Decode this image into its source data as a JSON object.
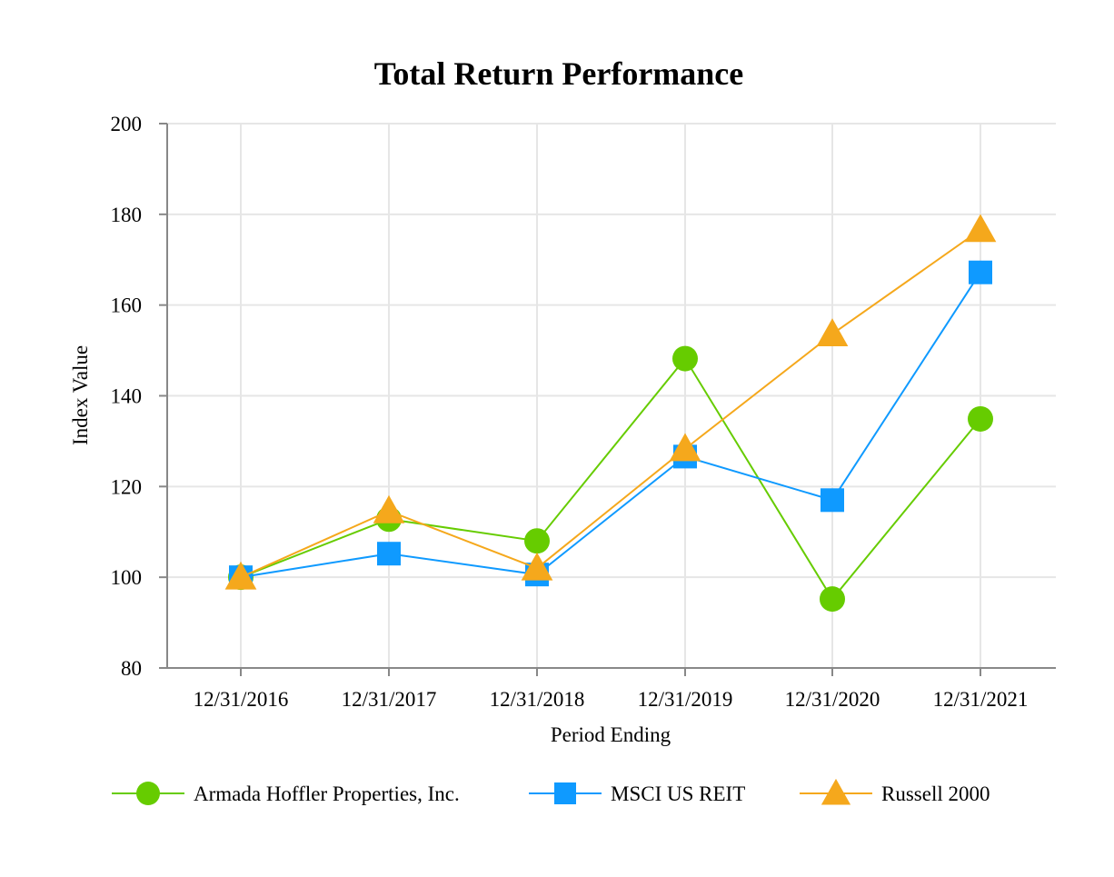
{
  "chart_data": {
    "type": "line",
    "title": "Total Return Performance",
    "xlabel": "Period Ending",
    "ylabel": "Index Value",
    "categories": [
      "12/31/2016",
      "12/31/2017",
      "12/31/2018",
      "12/31/2019",
      "12/31/2020",
      "12/31/2021"
    ],
    "ylim": [
      80,
      200
    ],
    "yticks": [
      80,
      100,
      120,
      140,
      160,
      180,
      200
    ],
    "grid": true,
    "legend_position": "bottom",
    "series": [
      {
        "name": "Armada Hoffler Properties, Inc.",
        "marker": "circle",
        "color": "#66cc00",
        "values": [
          100,
          112.8,
          108,
          148.2,
          95.2,
          134.9
        ]
      },
      {
        "name": "MSCI US REIT",
        "marker": "square",
        "color": "#0f9aff",
        "values": [
          100,
          105.2,
          100.6,
          126.6,
          117,
          167.2
        ]
      },
      {
        "name": "Russell 2000",
        "marker": "triangle",
        "color": "#f5a81c",
        "values": [
          100,
          114.6,
          102,
          128.3,
          153.6,
          176.6
        ]
      }
    ]
  }
}
